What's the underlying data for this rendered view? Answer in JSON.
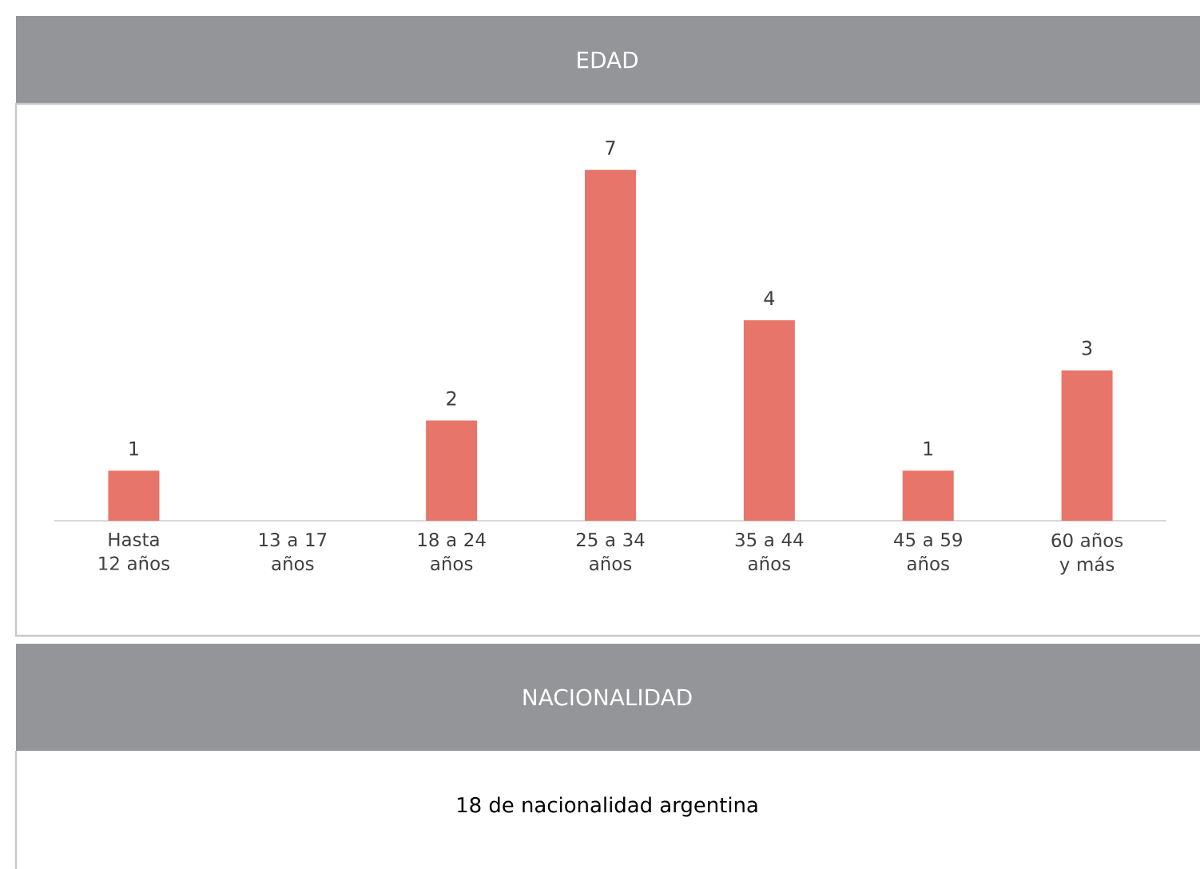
{
  "chart_data": [
    {
      "type": "bar",
      "title": "EDAD",
      "categories": [
        "Hasta 12 años",
        "13 a 17 años",
        "18 a 24 años",
        "25 a 34 años",
        "35 a 44 años",
        "45 a 59 años",
        "60 años y más"
      ],
      "values": [
        1,
        0,
        2,
        7,
        4,
        1,
        3
      ],
      "value_labels": [
        "1",
        null,
        "2",
        "7",
        "4",
        "1",
        "3"
      ],
      "color": "#e8756a"
    },
    {
      "type": "other",
      "title": "NACIONALIDAD",
      "annotations": [
        "18 de nacionalidad argentina"
      ]
    }
  ]
}
